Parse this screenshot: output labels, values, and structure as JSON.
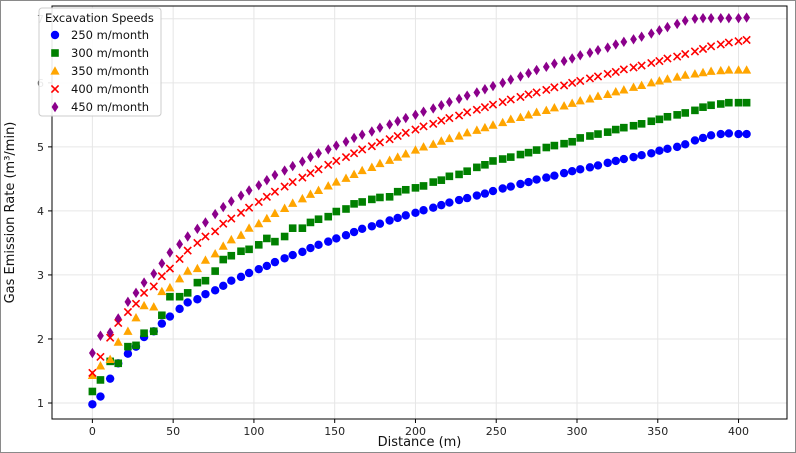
{
  "chart_data": {
    "type": "scatter",
    "title": "",
    "xlabel": "Distance (m)",
    "ylabel": "Gas Emission Rate (m³/min)",
    "xlim": [
      -25,
      430
    ],
    "ylim": [
      0.75,
      7.2
    ],
    "x_ticks": [
      0,
      50,
      100,
      150,
      200,
      250,
      300,
      350,
      400
    ],
    "y_ticks": [
      1,
      2,
      3,
      4,
      5,
      6,
      7
    ],
    "grid": true,
    "legend": {
      "title": "Excavation Speeds",
      "position": "top-left"
    },
    "x": [
      0,
      5,
      11,
      16,
      22,
      27,
      32,
      38,
      43,
      48,
      54,
      59,
      65,
      70,
      76,
      81,
      86,
      92,
      97,
      103,
      108,
      113,
      119,
      124,
      130,
      135,
      140,
      146,
      151,
      157,
      162,
      167,
      173,
      178,
      184,
      189,
      194,
      200,
      205,
      211,
      216,
      221,
      227,
      232,
      238,
      243,
      248,
      254,
      259,
      265,
      270,
      275,
      281,
      286,
      292,
      297,
      302,
      308,
      313,
      319,
      324,
      329,
      335,
      340,
      346,
      351,
      356,
      362,
      367,
      373,
      378,
      383,
      389,
      394,
      400,
      405
    ],
    "series": [
      {
        "name": "250 m/month",
        "color": "#0000ff",
        "marker": "circle",
        "values": [
          0.98,
          1.1,
          1.38,
          1.62,
          1.77,
          1.88,
          2.03,
          2.12,
          2.24,
          2.35,
          2.47,
          2.57,
          2.62,
          2.7,
          2.76,
          2.83,
          2.91,
          2.97,
          3.03,
          3.09,
          3.14,
          3.2,
          3.26,
          3.31,
          3.36,
          3.42,
          3.47,
          3.52,
          3.57,
          3.62,
          3.67,
          3.72,
          3.76,
          3.8,
          3.85,
          3.89,
          3.93,
          3.97,
          4.01,
          4.05,
          4.09,
          4.13,
          4.17,
          4.2,
          4.24,
          4.27,
          4.31,
          4.35,
          4.38,
          4.42,
          4.45,
          4.49,
          4.52,
          4.55,
          4.59,
          4.62,
          4.65,
          4.68,
          4.71,
          4.75,
          4.78,
          4.81,
          4.84,
          4.87,
          4.9,
          4.94,
          4.97,
          5.0,
          5.04,
          5.1,
          5.14,
          5.18,
          5.2,
          5.21,
          5.2,
          5.2
        ]
      },
      {
        "name": "300 m/month",
        "color": "#008000",
        "marker": "square",
        "values": [
          1.18,
          1.36,
          1.65,
          1.62,
          1.88,
          1.9,
          2.09,
          2.12,
          2.37,
          2.66,
          2.66,
          2.72,
          2.88,
          2.91,
          3.06,
          3.24,
          3.3,
          3.37,
          3.4,
          3.47,
          3.57,
          3.52,
          3.6,
          3.73,
          3.73,
          3.82,
          3.87,
          3.91,
          3.99,
          4.03,
          4.11,
          4.14,
          4.18,
          4.21,
          4.22,
          4.3,
          4.33,
          4.36,
          4.39,
          4.45,
          4.48,
          4.54,
          4.57,
          4.62,
          4.68,
          4.72,
          4.78,
          4.81,
          4.84,
          4.88,
          4.91,
          4.95,
          4.99,
          5.02,
          5.05,
          5.08,
          5.14,
          5.17,
          5.2,
          5.23,
          5.27,
          5.3,
          5.33,
          5.36,
          5.4,
          5.43,
          5.47,
          5.5,
          5.53,
          5.57,
          5.62,
          5.65,
          5.67,
          5.69,
          5.69,
          5.69
        ]
      },
      {
        "name": "350 m/month",
        "color": "#ffa500",
        "marker": "triangle",
        "values": [
          1.43,
          1.58,
          1.68,
          1.95,
          2.12,
          2.33,
          2.52,
          2.5,
          2.74,
          2.8,
          2.94,
          3.06,
          3.1,
          3.23,
          3.33,
          3.45,
          3.55,
          3.62,
          3.73,
          3.8,
          3.88,
          3.96,
          4.04,
          4.12,
          4.19,
          4.26,
          4.32,
          4.39,
          4.45,
          4.51,
          4.57,
          4.63,
          4.68,
          4.74,
          4.79,
          4.84,
          4.89,
          4.95,
          5.0,
          5.04,
          5.09,
          5.13,
          5.17,
          5.22,
          5.26,
          5.3,
          5.34,
          5.38,
          5.43,
          5.46,
          5.5,
          5.54,
          5.57,
          5.61,
          5.64,
          5.68,
          5.72,
          5.75,
          5.79,
          5.82,
          5.86,
          5.89,
          5.93,
          5.96,
          6.0,
          6.03,
          6.06,
          6.09,
          6.12,
          6.14,
          6.16,
          6.18,
          6.19,
          6.2,
          6.2,
          6.2
        ]
      },
      {
        "name": "400 m/month",
        "color": "#ff0000",
        "marker": "x",
        "values": [
          1.47,
          1.72,
          2.02,
          2.25,
          2.42,
          2.55,
          2.72,
          2.82,
          2.98,
          3.1,
          3.25,
          3.38,
          3.5,
          3.6,
          3.68,
          3.8,
          3.88,
          3.97,
          4.05,
          4.14,
          4.22,
          4.3,
          4.38,
          4.45,
          4.52,
          4.59,
          4.65,
          4.72,
          4.78,
          4.84,
          4.9,
          4.96,
          5.01,
          5.07,
          5.12,
          5.17,
          5.22,
          5.27,
          5.32,
          5.36,
          5.41,
          5.45,
          5.49,
          5.54,
          5.58,
          5.62,
          5.66,
          5.7,
          5.74,
          5.78,
          5.82,
          5.85,
          5.89,
          5.93,
          5.96,
          6.0,
          6.03,
          6.07,
          6.1,
          6.14,
          6.17,
          6.21,
          6.24,
          6.27,
          6.31,
          6.34,
          6.38,
          6.41,
          6.45,
          6.49,
          6.53,
          6.57,
          6.6,
          6.63,
          6.65,
          6.67
        ]
      },
      {
        "name": "450 m/month",
        "color": "#8b008b",
        "marker": "diamond",
        "values": [
          1.78,
          2.05,
          2.1,
          2.32,
          2.58,
          2.72,
          2.88,
          3.02,
          3.18,
          3.35,
          3.48,
          3.6,
          3.72,
          3.82,
          3.95,
          4.06,
          4.15,
          4.24,
          4.32,
          4.4,
          4.48,
          4.56,
          4.63,
          4.7,
          4.77,
          4.84,
          4.9,
          4.96,
          5.02,
          5.08,
          5.14,
          5.19,
          5.24,
          5.3,
          5.35,
          5.4,
          5.45,
          5.5,
          5.55,
          5.6,
          5.65,
          5.7,
          5.75,
          5.8,
          5.85,
          5.9,
          5.95,
          6.0,
          6.05,
          6.1,
          6.15,
          6.2,
          6.25,
          6.3,
          6.34,
          6.38,
          6.43,
          6.47,
          6.51,
          6.55,
          6.6,
          6.64,
          6.68,
          6.72,
          6.77,
          6.82,
          6.87,
          6.92,
          6.97,
          7.0,
          7.01,
          7.01,
          7.01,
          7.01,
          7.01,
          7.02
        ]
      }
    ]
  }
}
